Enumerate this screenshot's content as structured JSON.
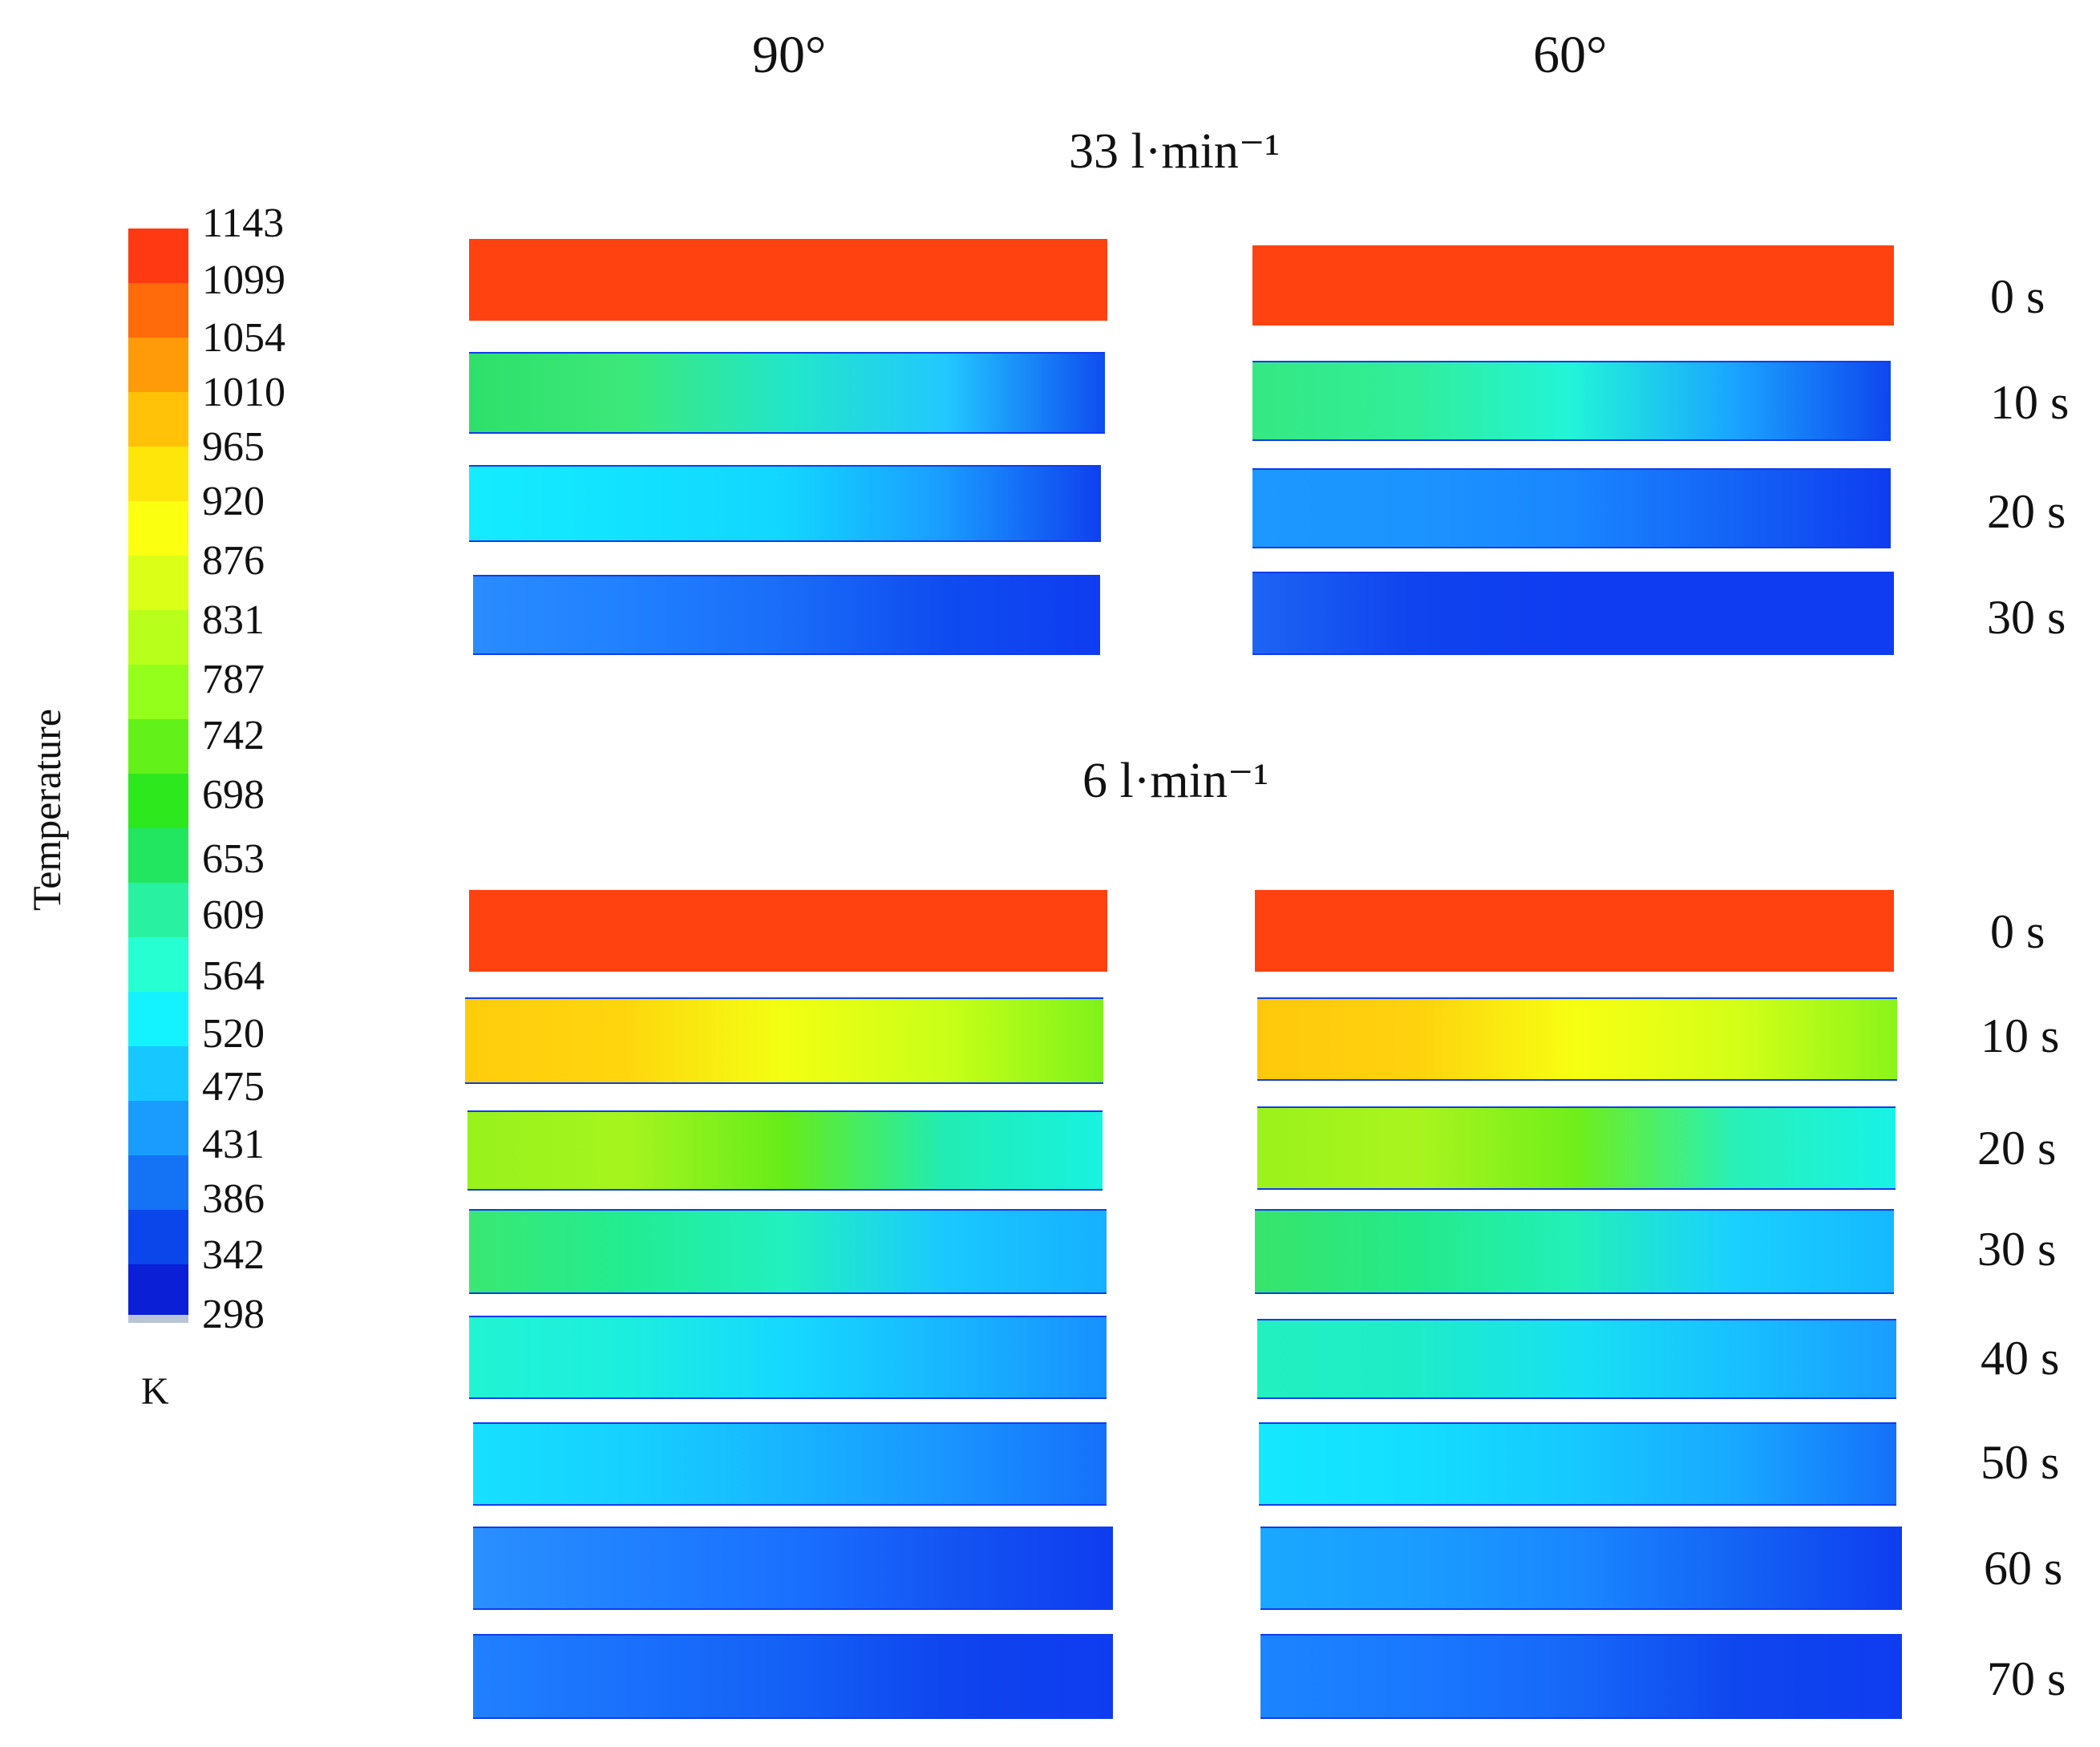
{
  "columns": [
    "90°",
    "60°"
  ],
  "flow_rates": [
    "33 l·min⁻¹",
    "6 l·min⁻¹"
  ],
  "groups": [
    {
      "time_labels": [
        "0 s",
        "10 s",
        "20 s",
        "30 s"
      ]
    },
    {
      "time_labels": [
        "0 s",
        "10 s",
        "20 s",
        "30 s",
        "40 s",
        "50 s",
        "60 s",
        "70 s"
      ]
    }
  ],
  "legend": {
    "title": "Temperature",
    "unit": "K",
    "ticks": [
      "1143",
      "1099",
      "1054",
      "1010",
      "965",
      "920",
      "876",
      "831",
      "787",
      "742",
      "698",
      "653",
      "609",
      "564",
      "520",
      "475",
      "431",
      "386",
      "342",
      "298"
    ],
    "colors": [
      "#ff3a12",
      "#ff6a0a",
      "#ff9a08",
      "#ffc208",
      "#ffe60a",
      "#fbff10",
      "#dcff18",
      "#b9ff1c",
      "#95ff1c",
      "#62f21a",
      "#2ee81e",
      "#22e660",
      "#28f2a2",
      "#26ffd2",
      "#12f2ff",
      "#16c8ff",
      "#1a9cff",
      "#1472f5",
      "#0a46ea",
      "#0a1fd6"
    ]
  },
  "fields": {
    "initial": "#ff4210",
    "cold": "#0f3cf0",
    "g1_10s_a": [
      "#2ee06a",
      "#3ce87a",
      "#22e6c8",
      "#22c8ff",
      "#0f4cf0"
    ],
    "g1_10s_b": [
      "#34e882",
      "#32ee9a",
      "#22f4d8",
      "#1aa6ff",
      "#0f46ee"
    ],
    "g1_20s_a": [
      "#14ecff",
      "#12e2ff",
      "#12d6ff",
      "#1a9cff",
      "#0f40ee"
    ],
    "g1_20s_b": [
      "#1c98ff",
      "#1c94ff",
      "#1a86ff",
      "#1464f6",
      "#0f3cf0"
    ],
    "g1_30s_a": [
      "#2a8cff",
      "#2080ff",
      "#1a6cf8",
      "#0f4cf0",
      "#0f3cf0"
    ],
    "g1_30s_b": [
      "#1e64f4",
      "#0f44ee",
      "#0f3cf0",
      "#0f3cf0",
      "#0f3cf0"
    ],
    "g2_10s_a": [
      "#ffcc0c",
      "#ffd60e",
      "#f2ff12",
      "#caff18",
      "#7ef21a"
    ],
    "g2_10s_b": [
      "#ffc80c",
      "#ffd20e",
      "#f6ff12",
      "#d4ff18",
      "#8af41a"
    ],
    "g2_20s_a": [
      "#98f21c",
      "#a6f41e",
      "#66ec1a",
      "#22ecb2",
      "#18f2e0"
    ],
    "g2_20s_b": [
      "#9cf21c",
      "#aaf41e",
      "#70ee1a",
      "#28f0b8",
      "#18f2e6"
    ],
    "g2_30s_a": [
      "#3ae872",
      "#22ec92",
      "#22f0c0",
      "#1ac8ff",
      "#16b0ff"
    ],
    "g2_30s_b": [
      "#38e46a",
      "#24ea8a",
      "#22f0b8",
      "#1ad0ff",
      "#16b8ff"
    ],
    "g2_40s_a": [
      "#20f4d2",
      "#1ceede",
      "#16d8ff",
      "#18b6ff",
      "#1890ff"
    ],
    "g2_40s_b": [
      "#22f0c0",
      "#1eecc8",
      "#18e0f2",
      "#18c0ff",
      "#1a9cff"
    ],
    "g2_50s_a": [
      "#16e0ff",
      "#16d0ff",
      "#18b4ff",
      "#1a94ff",
      "#1670fa"
    ],
    "g2_50s_b": [
      "#14e8ff",
      "#14ddff",
      "#16c8ff",
      "#18a8ff",
      "#1670fa"
    ],
    "g2_60s_a": [
      "#2a90ff",
      "#2080ff",
      "#1a70ff",
      "#1454f2",
      "#0f3cf0"
    ],
    "g2_60s_b": [
      "#1aa8ff",
      "#1a9cff",
      "#1a86ff",
      "#1462f4",
      "#0f3cf0"
    ],
    "g2_70s_a": [
      "#2080ff",
      "#1a70fc",
      "#1460f6",
      "#0f44ee",
      "#0f3cf0"
    ],
    "g2_70s_b": [
      "#1c84ff",
      "#1a78ff",
      "#1666f8",
      "#0f46ee",
      "#0f3cf0"
    ]
  }
}
